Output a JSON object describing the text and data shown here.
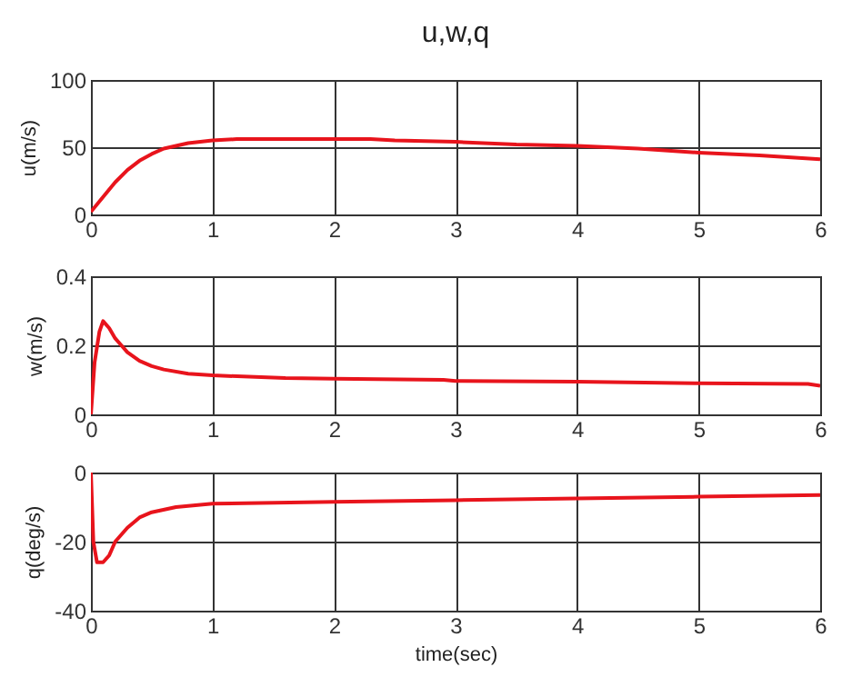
{
  "chart_data": [
    {
      "type": "line",
      "title": "u,w,q",
      "ylabel": "u(m/s)",
      "xlim": [
        0,
        6
      ],
      "xticks": [
        0,
        1,
        2,
        3,
        4,
        5,
        6
      ],
      "ylim": [
        0,
        100
      ],
      "yticks": [
        0,
        50,
        100
      ],
      "grid": true,
      "x": [
        0,
        0.1,
        0.2,
        0.3,
        0.4,
        0.5,
        0.6,
        0.7,
        0.8,
        1,
        1.2,
        2,
        2.3,
        2.5,
        3,
        3.5,
        4,
        4.5,
        5,
        5.5,
        6
      ],
      "series": [
        {
          "color": "#e8141c",
          "values": [
            2,
            13,
            24,
            33,
            40,
            45,
            49,
            51,
            53,
            55,
            56,
            56,
            56,
            55,
            54,
            52,
            51,
            49,
            46,
            44,
            41
          ]
        }
      ]
    },
    {
      "type": "line",
      "ylabel": "w(m/s)",
      "xlim": [
        0,
        6
      ],
      "xticks": [
        0,
        1,
        2,
        3,
        4,
        5,
        6
      ],
      "ylim": [
        0,
        0.4
      ],
      "yticks": [
        0,
        0.2,
        0.4
      ],
      "grid": true,
      "x": [
        0,
        0.03,
        0.07,
        0.1,
        0.15,
        0.2,
        0.25,
        0.3,
        0.4,
        0.5,
        0.6,
        0.8,
        1,
        1.6,
        2,
        2.9,
        3,
        4,
        5,
        5.9,
        6
      ],
      "series": [
        {
          "color": "#e8141c",
          "values": [
            0,
            0.15,
            0.24,
            0.27,
            0.25,
            0.22,
            0.2,
            0.18,
            0.155,
            0.14,
            0.13,
            0.118,
            0.113,
            0.105,
            0.103,
            0.1,
            0.097,
            0.095,
            0.09,
            0.088,
            0.083
          ]
        }
      ]
    },
    {
      "type": "line",
      "xlabel": "time(sec)",
      "ylabel": "q(deg/s)",
      "xlim": [
        0,
        6
      ],
      "xticks": [
        0,
        1,
        2,
        3,
        4,
        5,
        6
      ],
      "ylim": [
        -40,
        0
      ],
      "yticks": [
        -40,
        -20,
        0
      ],
      "grid": true,
      "x": [
        0,
        0.02,
        0.05,
        0.1,
        0.15,
        0.2,
        0.3,
        0.4,
        0.5,
        0.7,
        1,
        2,
        3,
        4,
        5,
        6
      ],
      "series": [
        {
          "color": "#e8141c",
          "values": [
            0,
            -20,
            -26,
            -26,
            -24,
            -20,
            -16,
            -13,
            -11.5,
            -10,
            -9,
            -8.5,
            -8,
            -7.5,
            -7,
            -6.5
          ]
        }
      ]
    }
  ]
}
